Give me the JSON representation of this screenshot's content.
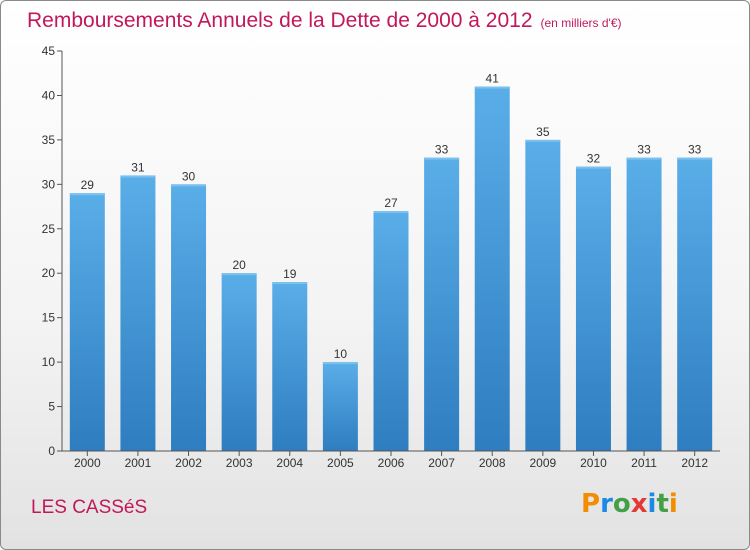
{
  "chart_title": "Remboursements Annuels de la Dette de 2000 à 2012",
  "chart_subtitle": "(en milliers d'€)",
  "place_name": "LES CASSéS",
  "logo": {
    "text": "Proxiti",
    "letters": [
      "P",
      "r",
      "o",
      "x",
      "i",
      "t",
      "i"
    ],
    "letter_colors": [
      "#f28c00",
      "#1e88e5",
      "#43a047",
      "#e53935",
      "#1e88e5",
      "#43a047",
      "#f28c00"
    ]
  },
  "colors": {
    "bar_top": "#5aaee8",
    "bar_bottom": "#2e7dc0",
    "axis": "#555555",
    "title": "#c2185b"
  },
  "chart_data": {
    "type": "bar",
    "title": "Remboursements Annuels de la Dette de 2000 à 2012",
    "subtitle": "(en milliers d'€)",
    "categories": [
      "2000",
      "2001",
      "2002",
      "2003",
      "2004",
      "2005",
      "2006",
      "2007",
      "2008",
      "2009",
      "2010",
      "2011",
      "2012"
    ],
    "values": [
      29,
      31,
      30,
      20,
      19,
      10,
      27,
      33,
      41,
      35,
      32,
      33,
      33
    ],
    "ylim": [
      0,
      45
    ],
    "yticks": [
      0,
      5,
      10,
      15,
      20,
      25,
      30,
      35,
      40,
      45
    ],
    "grid": false,
    "legend": "none",
    "data_labels": true
  }
}
